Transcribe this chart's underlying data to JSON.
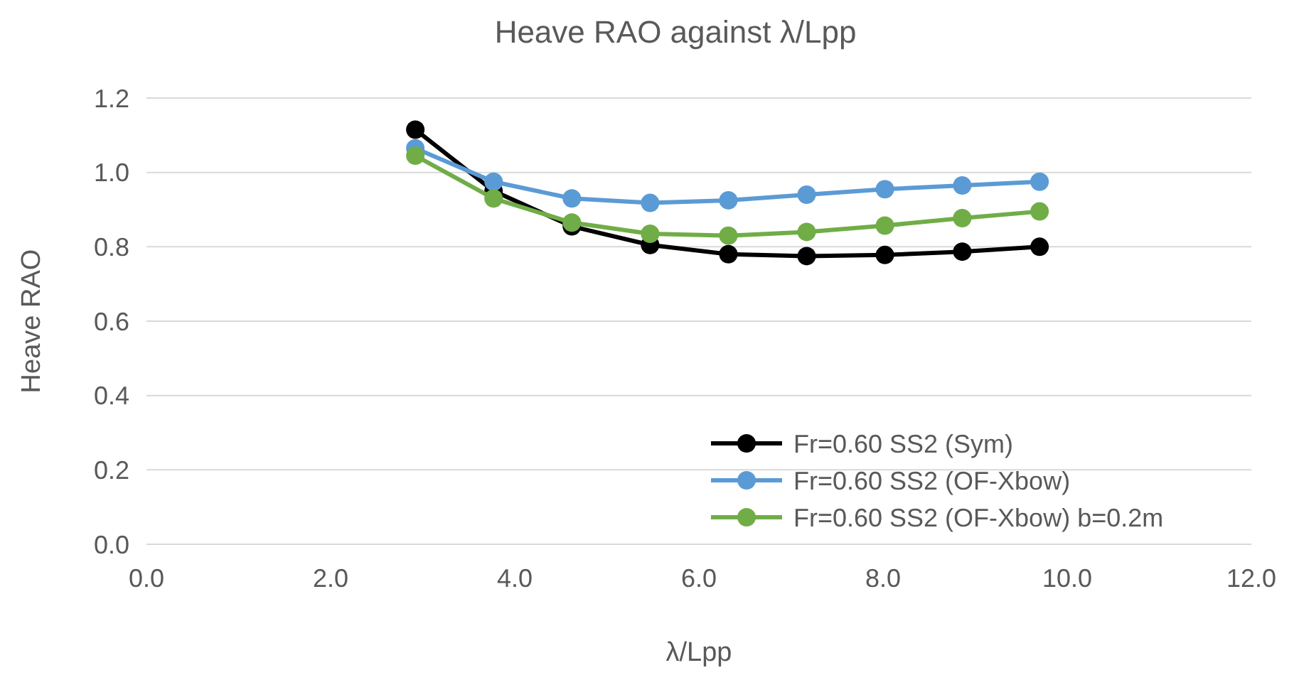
{
  "chart_data": {
    "type": "line",
    "title": "Heave RAO against λ/Lpp",
    "xlabel": "λ/Lpp",
    "ylabel": "Heave RAO",
    "x": [
      2.92,
      3.77,
      4.62,
      5.47,
      6.32,
      7.17,
      8.02,
      8.86,
      9.7
    ],
    "series": [
      {
        "name": "Fr=0.60 SS2 (Sym)",
        "color": "#000000",
        "values": [
          1.115,
          0.95,
          0.855,
          0.805,
          0.78,
          0.775,
          0.778,
          0.787,
          0.8
        ]
      },
      {
        "name": "Fr=0.60 SS2 (OF-Xbow)",
        "color": "#5b9bd5",
        "values": [
          1.065,
          0.975,
          0.93,
          0.918,
          0.925,
          0.94,
          0.955,
          0.965,
          0.975
        ]
      },
      {
        "name": "Fr=0.60 SS2 (OF-Xbow) b=0.2m",
        "color": "#70ad47",
        "values": [
          1.045,
          0.93,
          0.865,
          0.835,
          0.83,
          0.84,
          0.857,
          0.877,
          0.895
        ]
      }
    ],
    "xlim": [
      0,
      12
    ],
    "xticks": [
      {
        "value": 0,
        "label": "0.0"
      },
      {
        "value": 2,
        "label": "2.0"
      },
      {
        "value": 4,
        "label": "4.0"
      },
      {
        "value": 6,
        "label": "6.0"
      },
      {
        "value": 8,
        "label": "8.0"
      },
      {
        "value": 10,
        "label": "10.0"
      },
      {
        "value": 12,
        "label": "12.0"
      }
    ],
    "ylim": [
      0,
      1.2
    ],
    "yticks": [
      {
        "value": 0,
        "label": "0.0"
      },
      {
        "value": 0.2,
        "label": "0.2"
      },
      {
        "value": 0.4,
        "label": "0.4"
      },
      {
        "value": 0.6,
        "label": "0.6"
      },
      {
        "value": 0.8,
        "label": "0.8"
      },
      {
        "value": 1,
        "label": "1.0"
      },
      {
        "value": 1.2,
        "label": "1.2"
      }
    ],
    "grid": "y",
    "legend": "bottom right",
    "marker": "circle",
    "line_style": "solid"
  }
}
